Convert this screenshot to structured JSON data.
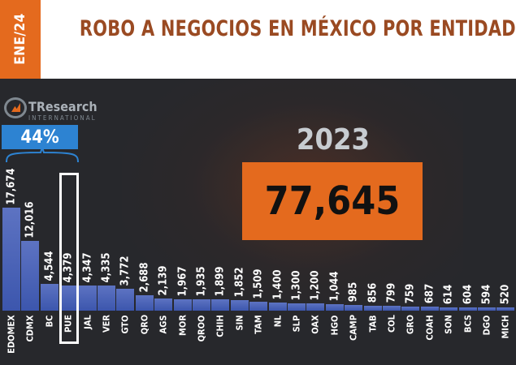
{
  "header": {
    "date_tab": "ENE/24",
    "title": "ROBO A NEGOCIOS EN  MÉXICO POR ENTIDAD"
  },
  "logo": {
    "name": "TResearch",
    "subtitle": "INTERNATIONAL"
  },
  "share_badge": "44%",
  "summary": {
    "year": "2023",
    "total": "77,645"
  },
  "colors": {
    "accent": "#e46a1e",
    "bar": "#4a63b8",
    "badge": "#2d83d2",
    "title": "#9a4a22",
    "background": "#27282c"
  },
  "highlighted_category": "PUE",
  "chart_data": {
    "type": "bar",
    "title": "",
    "xlabel": "",
    "ylabel": "",
    "categories": [
      "EDOMEX",
      "CDMX",
      "BC",
      "PUE",
      "JAL",
      "VER",
      "GTO",
      "QRO",
      "AGS",
      "MOR",
      "QROO",
      "CHIH",
      "SIN",
      "TAM",
      "NL",
      "SLP",
      "OAX",
      "HGO",
      "CAMP",
      "TAB",
      "COL",
      "GRO",
      "COAH",
      "SON",
      "BCS",
      "DGO",
      "MICH"
    ],
    "labels": [
      "17,674",
      "12,016",
      "4,544",
      "4,379",
      "4,347",
      "4,335",
      "3,772",
      "2,688",
      "2,139",
      "1,967",
      "1,935",
      "1,899",
      "1,852",
      "1,509",
      "1,400",
      "1,300",
      "1,200",
      "1,044",
      "985",
      "856",
      "799",
      "759",
      "687",
      "614",
      "604",
      "594",
      "520"
    ],
    "values": [
      17674,
      12016,
      4544,
      4379,
      4347,
      4335,
      3772,
      2688,
      2139,
      1967,
      1935,
      1899,
      1852,
      1509,
      1400,
      1300,
      1200,
      1044,
      985,
      856,
      799,
      759,
      687,
      614,
      604,
      594,
      520
    ],
    "ylim": [
      0,
      17674
    ],
    "grid": false,
    "legend": "none"
  }
}
